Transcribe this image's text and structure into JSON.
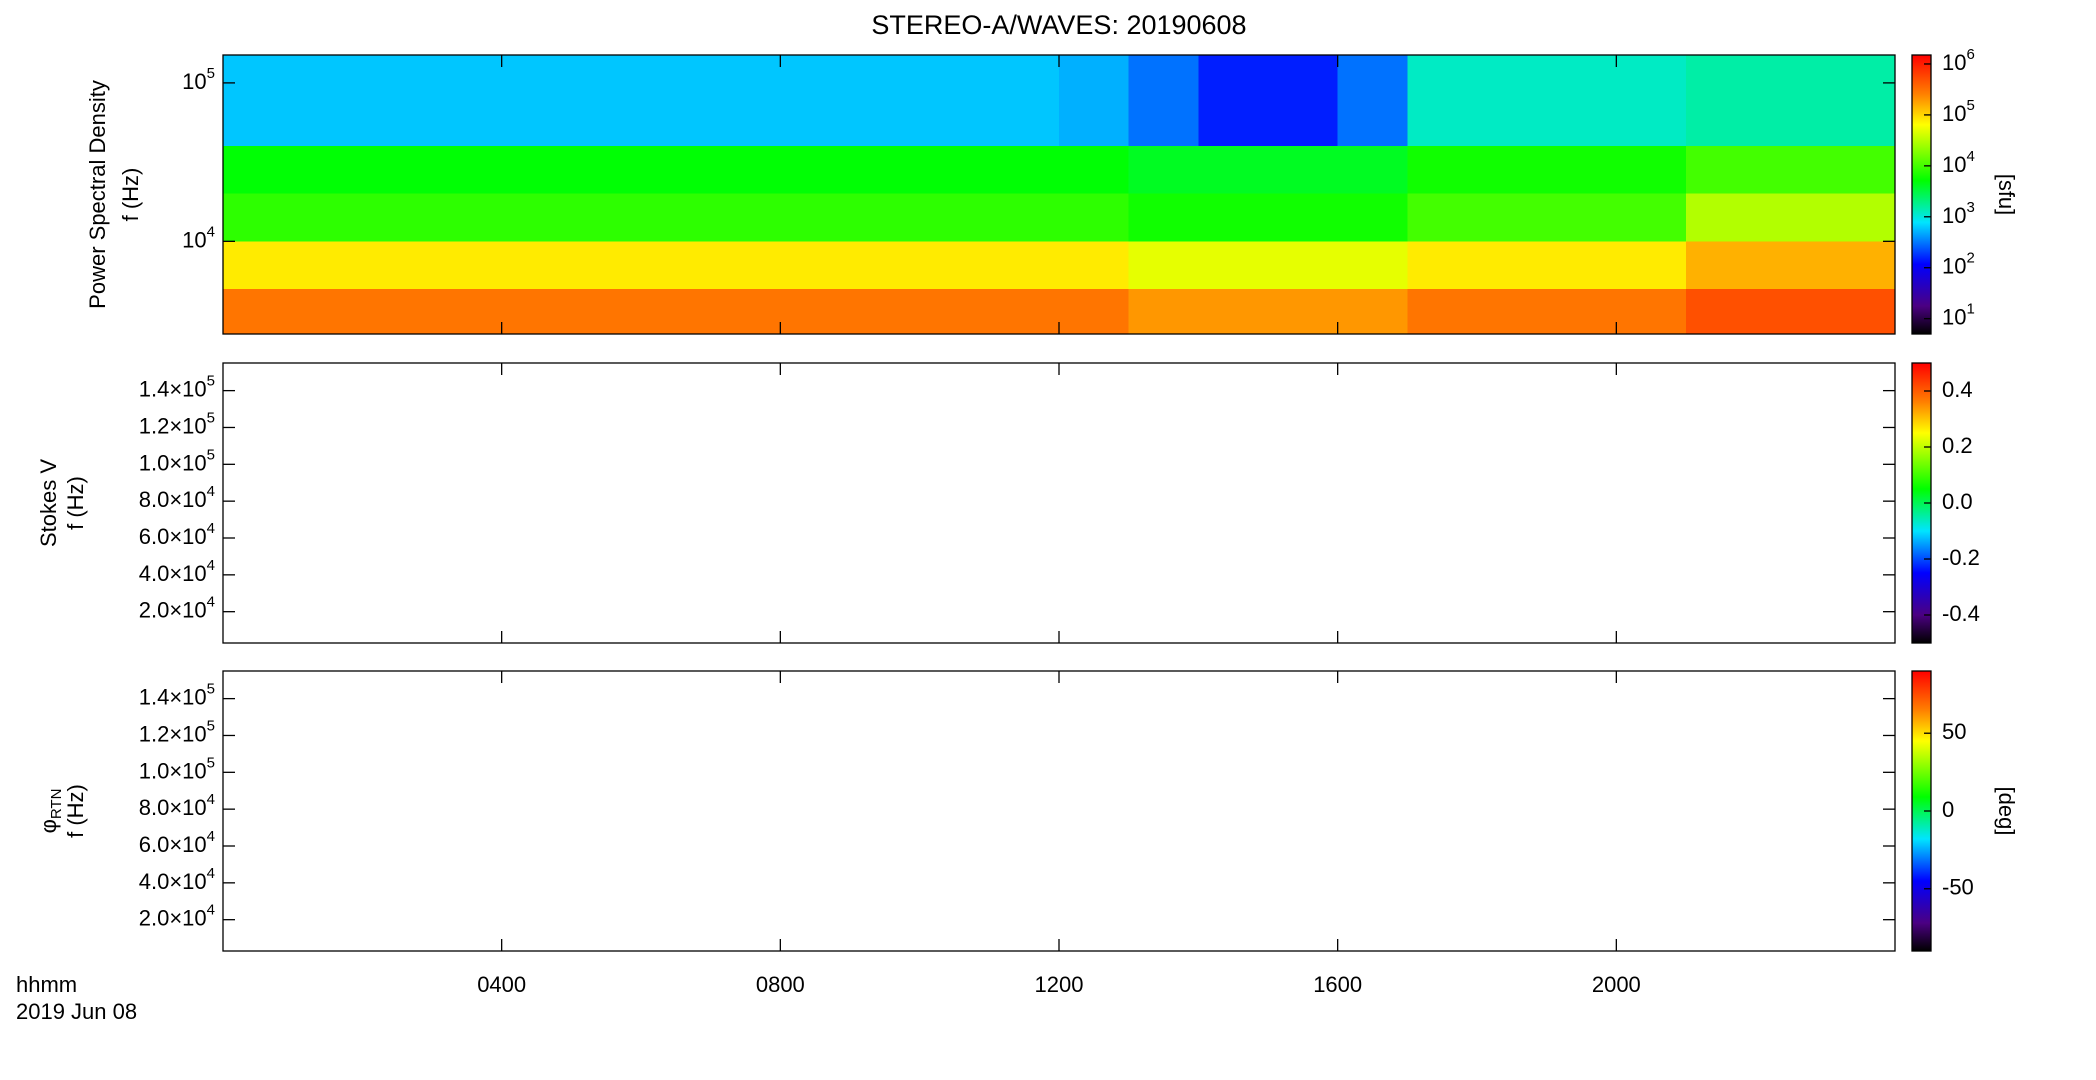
{
  "chart_data": [
    {
      "type": "heatmap",
      "title": "STEREO-A/WAVES: 20190608",
      "ylabel": [
        "Power Spectral Density",
        "f (Hz)"
      ],
      "ylog": true,
      "ylim": [
        2600,
        150000
      ],
      "yticks": [
        {
          "value": 10000,
          "label": "10",
          "sup": "4"
        },
        {
          "value": 100000,
          "label": "10",
          "sup": "5"
        }
      ],
      "xlim": [
        0,
        24
      ],
      "xticks": [
        4,
        8,
        12,
        16,
        20
      ],
      "x_edges": [
        0,
        1,
        2,
        3,
        4,
        5,
        6,
        7,
        8,
        9,
        10,
        11,
        12,
        13,
        14,
        15,
        16,
        17,
        18,
        19,
        20,
        21,
        22,
        23,
        24
      ],
      "y_edges": [
        2600,
        5000,
        10000,
        20000,
        40000,
        150000
      ],
      "z": [
        [
          300000,
          300000,
          300000,
          300000,
          300000,
          300000,
          300000,
          300000,
          300000,
          300000,
          300000,
          300000,
          300000,
          200000,
          200000,
          200000,
          200000,
          300000,
          300000,
          300000,
          300000,
          500000,
          500000,
          500000
        ],
        [
          80000,
          80000,
          80000,
          80000,
          80000,
          80000,
          80000,
          80000,
          80000,
          80000,
          80000,
          80000,
          80000,
          50000,
          50000,
          50000,
          50000,
          80000,
          80000,
          80000,
          80000,
          150000,
          150000,
          150000
        ],
        [
          8000,
          8000,
          8000,
          8000,
          8000,
          8000,
          8000,
          8000,
          8000,
          8000,
          8000,
          8000,
          8000,
          6000,
          6000,
          6000,
          6000,
          10000,
          10000,
          10000,
          10000,
          30000,
          30000,
          30000
        ],
        [
          5000,
          5000,
          5000,
          5000,
          5000,
          5000,
          5000,
          5000,
          5000,
          5000,
          5000,
          5000,
          5000,
          4000,
          4000,
          4000,
          4000,
          6000,
          6000,
          6000,
          6000,
          10000,
          10000,
          10000
        ],
        [
          600,
          600,
          600,
          600,
          600,
          600,
          600,
          600,
          600,
          600,
          600,
          600,
          500,
          300,
          150,
          150,
          300,
          1200,
          1200,
          1200,
          1200,
          1500,
          1500,
          1500
        ]
      ],
      "colormap": "rainbow",
      "zlog": true,
      "zlim": [
        5,
        1500000
      ],
      "zticks": [
        {
          "value": 10,
          "label": "10",
          "sup": "1"
        },
        {
          "value": 100,
          "label": "10",
          "sup": "2"
        },
        {
          "value": 1000,
          "label": "10",
          "sup": "3"
        },
        {
          "value": 10000,
          "label": "10",
          "sup": "4"
        },
        {
          "value": 100000,
          "label": "10",
          "sup": "5"
        },
        {
          "value": 1000000,
          "label": "10",
          "sup": "6"
        }
      ],
      "zlabel": "[sfu]"
    },
    {
      "type": "heatmap",
      "ylabel": [
        "Stokes V",
        "f (Hz)"
      ],
      "ylim": [
        3000,
        155000
      ],
      "yticks": [
        {
          "value": 20000,
          "label": "2.0×10",
          "sup": "4"
        },
        {
          "value": 40000,
          "label": "4.0×10",
          "sup": "4"
        },
        {
          "value": 60000,
          "label": "6.0×10",
          "sup": "4"
        },
        {
          "value": 80000,
          "label": "8.0×10",
          "sup": "4"
        },
        {
          "value": 100000,
          "label": "1.0×10",
          "sup": "5"
        },
        {
          "value": 120000,
          "label": "1.2×10",
          "sup": "5"
        },
        {
          "value": 140000,
          "label": "1.4×10",
          "sup": "5"
        }
      ],
      "xlim": [
        0,
        24
      ],
      "xticks": [
        4,
        8,
        12,
        16,
        20
      ],
      "colormap": "rainbow",
      "zlim": [
        -0.5,
        0.5
      ],
      "zticks": [
        -0.4,
        -0.2,
        {
          "value": 0,
          "label": "0.0"
        },
        0.2,
        0.4
      ]
    },
    {
      "type": "heatmap",
      "ylabel": [
        "φ",
        "f (Hz)"
      ],
      "ylabel_sub": "RTN",
      "ylim": [
        3000,
        155000
      ],
      "yticks": [
        {
          "value": 20000,
          "label": "2.0×10",
          "sup": "4"
        },
        {
          "value": 40000,
          "label": "4.0×10",
          "sup": "4"
        },
        {
          "value": 60000,
          "label": "6.0×10",
          "sup": "4"
        },
        {
          "value": 80000,
          "label": "8.0×10",
          "sup": "4"
        },
        {
          "value": 100000,
          "label": "1.0×10",
          "sup": "5"
        },
        {
          "value": 120000,
          "label": "1.2×10",
          "sup": "5"
        },
        {
          "value": 140000,
          "label": "1.4×10",
          "sup": "5"
        }
      ],
      "xlim": [
        0,
        24
      ],
      "xticks": [
        {
          "value": 4,
          "label": "0400"
        },
        {
          "value": 8,
          "label": "0800"
        },
        {
          "value": 12,
          "label": "1200"
        },
        {
          "value": 16,
          "label": "1600"
        },
        {
          "value": 20,
          "label": "2000"
        }
      ],
      "xlabel": "hhmm",
      "date": "2019 Jun 08",
      "colormap": "rainbow",
      "zlim": [
        -90,
        90
      ],
      "zticks": [
        -50,
        0,
        50
      ],
      "zlabel": "[deg]"
    }
  ]
}
